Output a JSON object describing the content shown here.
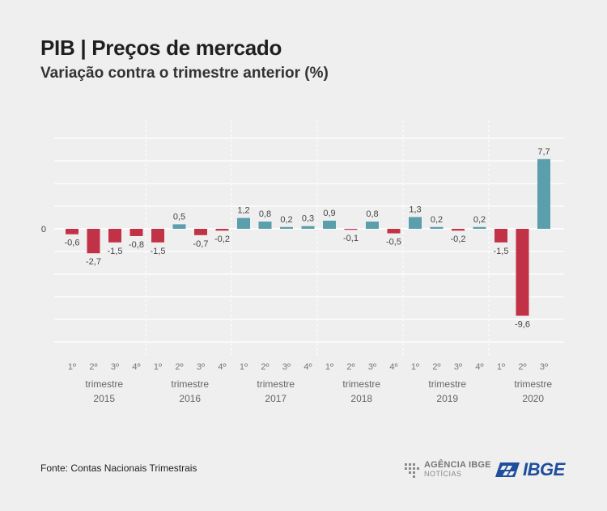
{
  "header": {
    "title": "PIB | Preços de mercado",
    "subtitle": "Variação contra o trimestre anterior (%)"
  },
  "footer": {
    "source": "Fonte: Contas Nacionais Trimestrais",
    "agency_name": "AGÊNCIA IBGE",
    "agency_sub": "NOTÍCIAS",
    "ibge_logo": "IBGE"
  },
  "colors": {
    "positive": "#5b9eac",
    "negative": "#c23246",
    "grid": "#ffffff",
    "background": "#efefef"
  },
  "chart_data": {
    "type": "bar",
    "title": "PIB | Preços de mercado",
    "subtitle": "Variação contra o trimestre anterior (%)",
    "zero_label": "0",
    "group_word": "trimestre",
    "groups": [
      {
        "year": "2015",
        "quarters": [
          "1º",
          "2º",
          "3º",
          "4º"
        ],
        "values": [
          -0.6,
          -2.7,
          -1.5,
          -0.8
        ],
        "labels": [
          "-0,6",
          "-2,7",
          "-1,5",
          "-0,8"
        ]
      },
      {
        "year": "2016",
        "quarters": [
          "1º",
          "2º",
          "3º",
          "4º"
        ],
        "values": [
          -1.5,
          0.5,
          -0.7,
          -0.2
        ],
        "labels": [
          "-1,5",
          "0,5",
          "-0,7",
          "-0,2"
        ]
      },
      {
        "year": "2017",
        "quarters": [
          "1º",
          "2º",
          "3º",
          "4º"
        ],
        "values": [
          1.2,
          0.8,
          0.2,
          0.3
        ],
        "labels": [
          "1,2",
          "0,8",
          "0,2",
          "0,3"
        ]
      },
      {
        "year": "2018",
        "quarters": [
          "1º",
          "2º",
          "3º",
          "4º"
        ],
        "values": [
          0.9,
          -0.1,
          0.8,
          -0.5
        ],
        "labels": [
          "0,9",
          "-0,1",
          "0,8",
          "-0,5"
        ]
      },
      {
        "year": "2019",
        "quarters": [
          "1º",
          "2º",
          "3º",
          "4º"
        ],
        "values": [
          1.3,
          0.2,
          -0.2,
          0.2
        ],
        "labels": [
          "1,3",
          "0,2",
          "-0,2",
          "0,2"
        ]
      },
      {
        "year": "2020",
        "quarters": [
          "1º",
          "2º",
          "3º"
        ],
        "values": [
          -1.5,
          -9.6,
          7.7
        ],
        "labels": [
          "-1,5",
          "-9,6",
          "7,7"
        ]
      }
    ],
    "ylim": [
      -14,
      12
    ],
    "grid": true
  }
}
